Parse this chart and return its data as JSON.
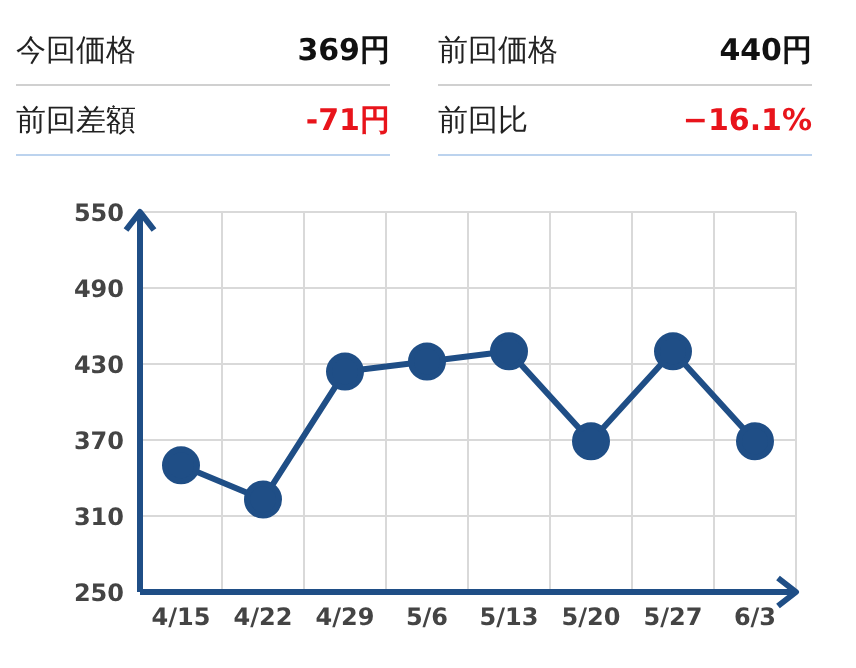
{
  "chart_data": {
    "type": "line",
    "categories": [
      "4/15",
      "4/22",
      "4/29",
      "5/6",
      "5/13",
      "5/20",
      "5/27",
      "6/3"
    ],
    "series": [
      {
        "color": "#1f4e86",
        "values": [
          350,
          323,
          424,
          432,
          440,
          369,
          440,
          369
        ]
      }
    ],
    "ylim": [
      250,
      550
    ],
    "yticks": [
      250,
      310,
      370,
      430,
      490,
      550
    ],
    "grid": true,
    "marker": "circle",
    "line_style": "solid",
    "legend": false,
    "annotations": [
      "今回価格",
      "369円",
      "前回価格",
      "440円",
      "前回差額",
      "-71円",
      "前回比",
      "−16.1%"
    ]
  }
}
